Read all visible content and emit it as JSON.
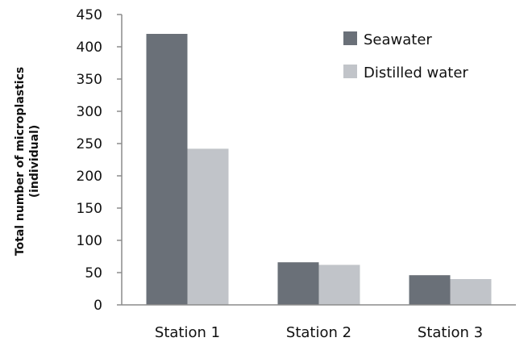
{
  "chart_data": {
    "type": "bar",
    "categories": [
      "Station 1",
      "Station 2",
      "Station 3"
    ],
    "series": [
      {
        "name": "Seawater",
        "values": [
          420,
          66,
          46
        ],
        "color": "#6a7078"
      },
      {
        "name": "Distilled water",
        "values": [
          242,
          62,
          40
        ],
        "color": "#c1c4c9"
      }
    ],
    "title": "",
    "xlabel": "",
    "ylabel_line1": "Total number of microplastics",
    "ylabel_line2": "(individual)",
    "ylim": [
      0,
      450
    ],
    "yticks": [
      "0",
      "50",
      "100",
      "150",
      "200",
      "250",
      "300",
      "350",
      "400",
      "450"
    ],
    "grid": false,
    "legend_position": "top-right"
  }
}
